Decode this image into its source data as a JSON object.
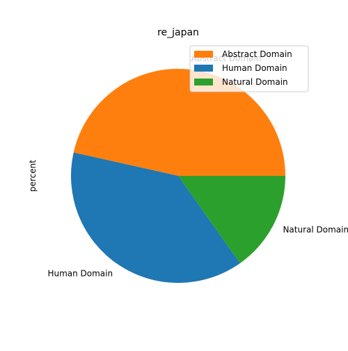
{
  "chart_data": {
    "type": "pie",
    "title": "re_japan",
    "ylabel": "percent",
    "legend_position": "upper right",
    "start_angle_deg": 0,
    "direction": "counterclockwise",
    "slices": [
      {
        "label": "Abstract Domain",
        "value": 46.5,
        "color": "#ff7f0e"
      },
      {
        "label": "Human Domain",
        "value": 38.3,
        "color": "#1f77b4"
      },
      {
        "label": "Natural Domain",
        "value": 15.2,
        "color": "#2ca02c"
      }
    ]
  }
}
